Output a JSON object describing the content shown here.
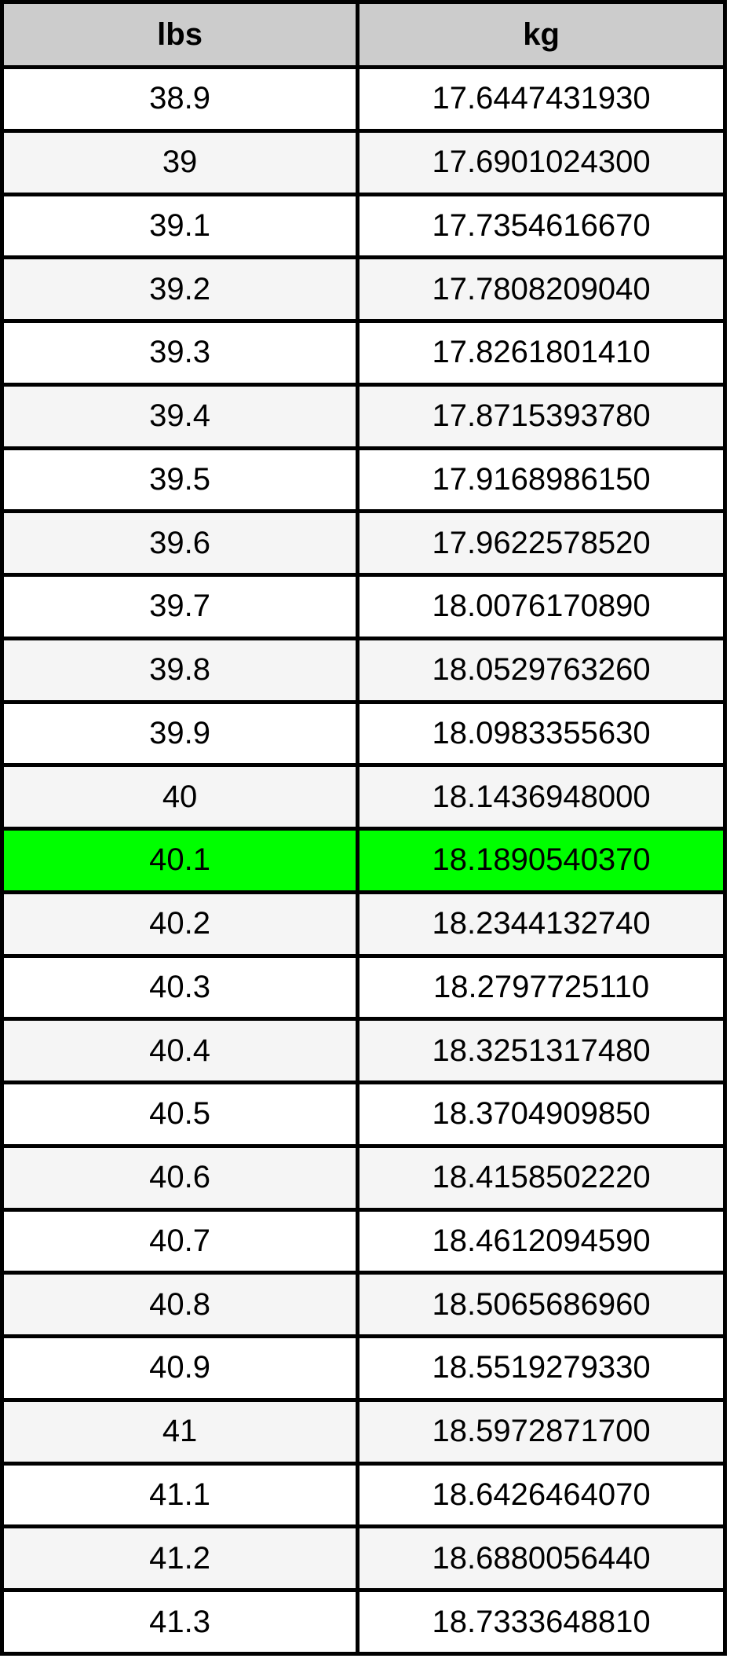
{
  "table": {
    "headers": {
      "lbs": "lbs",
      "kg": "kg"
    },
    "rows": [
      {
        "lbs": "38.9",
        "kg": "17.6447431930",
        "highlighted": false
      },
      {
        "lbs": "39",
        "kg": "17.6901024300",
        "highlighted": false
      },
      {
        "lbs": "39.1",
        "kg": "17.7354616670",
        "highlighted": false
      },
      {
        "lbs": "39.2",
        "kg": "17.7808209040",
        "highlighted": false
      },
      {
        "lbs": "39.3",
        "kg": "17.8261801410",
        "highlighted": false
      },
      {
        "lbs": "39.4",
        "kg": "17.8715393780",
        "highlighted": false
      },
      {
        "lbs": "39.5",
        "kg": "17.9168986150",
        "highlighted": false
      },
      {
        "lbs": "39.6",
        "kg": "17.9622578520",
        "highlighted": false
      },
      {
        "lbs": "39.7",
        "kg": "18.0076170890",
        "highlighted": false
      },
      {
        "lbs": "39.8",
        "kg": "18.0529763260",
        "highlighted": false
      },
      {
        "lbs": "39.9",
        "kg": "18.0983355630",
        "highlighted": false
      },
      {
        "lbs": "40",
        "kg": "18.1436948000",
        "highlighted": false
      },
      {
        "lbs": "40.1",
        "kg": "18.1890540370",
        "highlighted": true
      },
      {
        "lbs": "40.2",
        "kg": "18.2344132740",
        "highlighted": false
      },
      {
        "lbs": "40.3",
        "kg": "18.2797725110",
        "highlighted": false
      },
      {
        "lbs": "40.4",
        "kg": "18.3251317480",
        "highlighted": false
      },
      {
        "lbs": "40.5",
        "kg": "18.3704909850",
        "highlighted": false
      },
      {
        "lbs": "40.6",
        "kg": "18.4158502220",
        "highlighted": false
      },
      {
        "lbs": "40.7",
        "kg": "18.4612094590",
        "highlighted": false
      },
      {
        "lbs": "40.8",
        "kg": "18.5065686960",
        "highlighted": false
      },
      {
        "lbs": "40.9",
        "kg": "18.5519279330",
        "highlighted": false
      },
      {
        "lbs": "41",
        "kg": "18.5972871700",
        "highlighted": false
      },
      {
        "lbs": "41.1",
        "kg": "18.6426464070",
        "highlighted": false
      },
      {
        "lbs": "41.2",
        "kg": "18.6880056440",
        "highlighted": false
      },
      {
        "lbs": "41.3",
        "kg": "18.7333648810",
        "highlighted": false
      }
    ],
    "highlighted_row": {
      "lbs": "40.1",
      "kg": "18.1890540370"
    },
    "colors": {
      "header_bg": "#cccccc",
      "row_bg": "#ffffff",
      "row_alt_bg": "#f5f5f5",
      "highlight_bg": "#00ff00",
      "border": "#000000",
      "text": "#000000"
    }
  },
  "chart_data": {
    "type": "table",
    "columns": [
      "lbs",
      "kg"
    ],
    "rows": [
      [
        "38.9",
        "17.6447431930"
      ],
      [
        "39",
        "17.6901024300"
      ],
      [
        "39.1",
        "17.7354616670"
      ],
      [
        "39.2",
        "17.7808209040"
      ],
      [
        "39.3",
        "17.8261801410"
      ],
      [
        "39.4",
        "17.8715393780"
      ],
      [
        "39.5",
        "17.9168986150"
      ],
      [
        "39.6",
        "17.9622578520"
      ],
      [
        "39.7",
        "18.0076170890"
      ],
      [
        "39.8",
        "18.0529763260"
      ],
      [
        "39.9",
        "18.0983355630"
      ],
      [
        "40",
        "18.1436948000"
      ],
      [
        "40.1",
        "18.1890540370"
      ],
      [
        "40.2",
        "18.2344132740"
      ],
      [
        "40.3",
        "18.2797725110"
      ],
      [
        "40.4",
        "18.3251317480"
      ],
      [
        "40.5",
        "18.3704909850"
      ],
      [
        "40.6",
        "18.4158502220"
      ],
      [
        "40.7",
        "18.4612094590"
      ],
      [
        "40.8",
        "18.5065686960"
      ],
      [
        "40.9",
        "18.5519279330"
      ],
      [
        "41",
        "18.5972871700"
      ],
      [
        "41.1",
        "18.6426464070"
      ],
      [
        "41.2",
        "18.6880056440"
      ],
      [
        "41.3",
        "18.7333648810"
      ]
    ],
    "highlighted_row_index": 12
  }
}
